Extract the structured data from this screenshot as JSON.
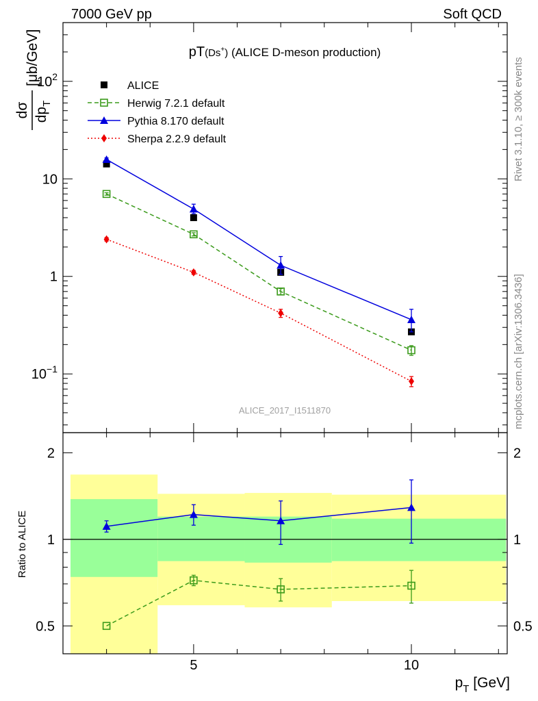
{
  "header": {
    "left": "7000 GeV pp",
    "right": "Soft QCD"
  },
  "side_labels": {
    "top": "Rivet 3.1.10, ≥ 300k events",
    "bottom": "mcplots.cern.ch [arXiv:1306.3436]"
  },
  "chart_data": [
    {
      "type": "line",
      "panel": "main",
      "title": "pT(Ds+) (ALICE D-meson production)",
      "xlabel": "p_T [GeV]",
      "ylabel": "dσ/dp_T [μb/GeV]",
      "yscale": "log",
      "xlim": [
        2,
        12.2
      ],
      "ylim": [
        0.025,
        400
      ],
      "watermark": "ALICE_2017_I1511870",
      "legend_position": "top-left",
      "ytick_labels": [
        "10^-1",
        "1",
        "10",
        "10^2"
      ],
      "series": [
        {
          "name": "ALICE",
          "marker": "square-filled",
          "color": "#000000",
          "x": [
            3,
            5,
            7,
            10
          ],
          "y": [
            14.2,
            4.0,
            1.1,
            0.27
          ],
          "xerr": [
            [
              2,
              4
            ],
            [
              4,
              6
            ],
            [
              6,
              8
            ],
            [
              8,
              12
            ]
          ]
        },
        {
          "name": "Herwig 7.2.1 default",
          "marker": "square-open",
          "line": "dashed",
          "color": "#3a9a1a",
          "x": [
            3,
            5,
            7,
            10
          ],
          "y": [
            7.0,
            2.7,
            0.7,
            0.175
          ],
          "yerr_low": [
            0.2,
            0.1,
            0.05,
            0.02
          ],
          "yerr_high": [
            0.2,
            0.1,
            0.05,
            0.02
          ]
        },
        {
          "name": "Pythia 8.170 default",
          "marker": "triangle-filled",
          "line": "solid",
          "color": "#0000dd",
          "x": [
            3,
            5,
            7,
            10
          ],
          "y": [
            15.8,
            4.9,
            1.3,
            0.36
          ],
          "yerr_low": [
            0.6,
            0.5,
            0.25,
            0.09
          ],
          "yerr_high": [
            0.6,
            0.6,
            0.3,
            0.1
          ]
        },
        {
          "name": "Sherpa 2.2.9 default",
          "marker": "diamond-filled",
          "line": "dotted",
          "color": "#ee0000",
          "x": [
            3,
            5,
            7,
            10
          ],
          "y": [
            2.4,
            1.1,
            0.42,
            0.084
          ],
          "yerr_low": [
            0.1,
            0.05,
            0.04,
            0.01
          ],
          "yerr_high": [
            0.1,
            0.05,
            0.04,
            0.01
          ]
        }
      ]
    },
    {
      "type": "line",
      "panel": "ratio",
      "ylabel": "Ratio to ALICE",
      "xlabel": "p_T [GeV]",
      "yscale": "log",
      "xlim": [
        2,
        12.2
      ],
      "ylim": [
        0.4,
        2.35
      ],
      "xtick_labels": [
        "5",
        "10"
      ],
      "ytick_labels": [
        "0.5",
        "1",
        "2"
      ],
      "bands": {
        "bins": [
          [
            2,
            4
          ],
          [
            4,
            6
          ],
          [
            6,
            8
          ],
          [
            8,
            12
          ]
        ],
        "stat": {
          "color": "#99ff99",
          "low": [
            0.74,
            0.84,
            0.83,
            0.84
          ],
          "high": [
            1.38,
            1.2,
            1.2,
            1.18
          ]
        },
        "total": {
          "color": "#ffff99",
          "low": [
            0.4,
            0.59,
            0.58,
            0.61
          ],
          "high": [
            1.68,
            1.44,
            1.45,
            1.43
          ]
        }
      },
      "series": [
        {
          "name": "Herwig 7.2.1 default",
          "marker": "square-open",
          "line": "dashed",
          "color": "#3a9a1a",
          "x": [
            3,
            5,
            7,
            10
          ],
          "y": [
            0.5,
            0.72,
            0.67,
            0.69
          ],
          "yerr_low": [
            0.0,
            0.03,
            0.06,
            0.09
          ],
          "yerr_high": [
            0.0,
            0.03,
            0.06,
            0.09
          ]
        },
        {
          "name": "Pythia 8.170 default",
          "marker": "triangle-filled",
          "line": "solid",
          "color": "#0000dd",
          "x": [
            3,
            5,
            7,
            10
          ],
          "y": [
            1.11,
            1.22,
            1.16,
            1.29
          ],
          "yerr_low": [
            0.05,
            0.1,
            0.2,
            0.32
          ],
          "yerr_high": [
            0.05,
            0.1,
            0.2,
            0.32
          ]
        }
      ]
    }
  ]
}
